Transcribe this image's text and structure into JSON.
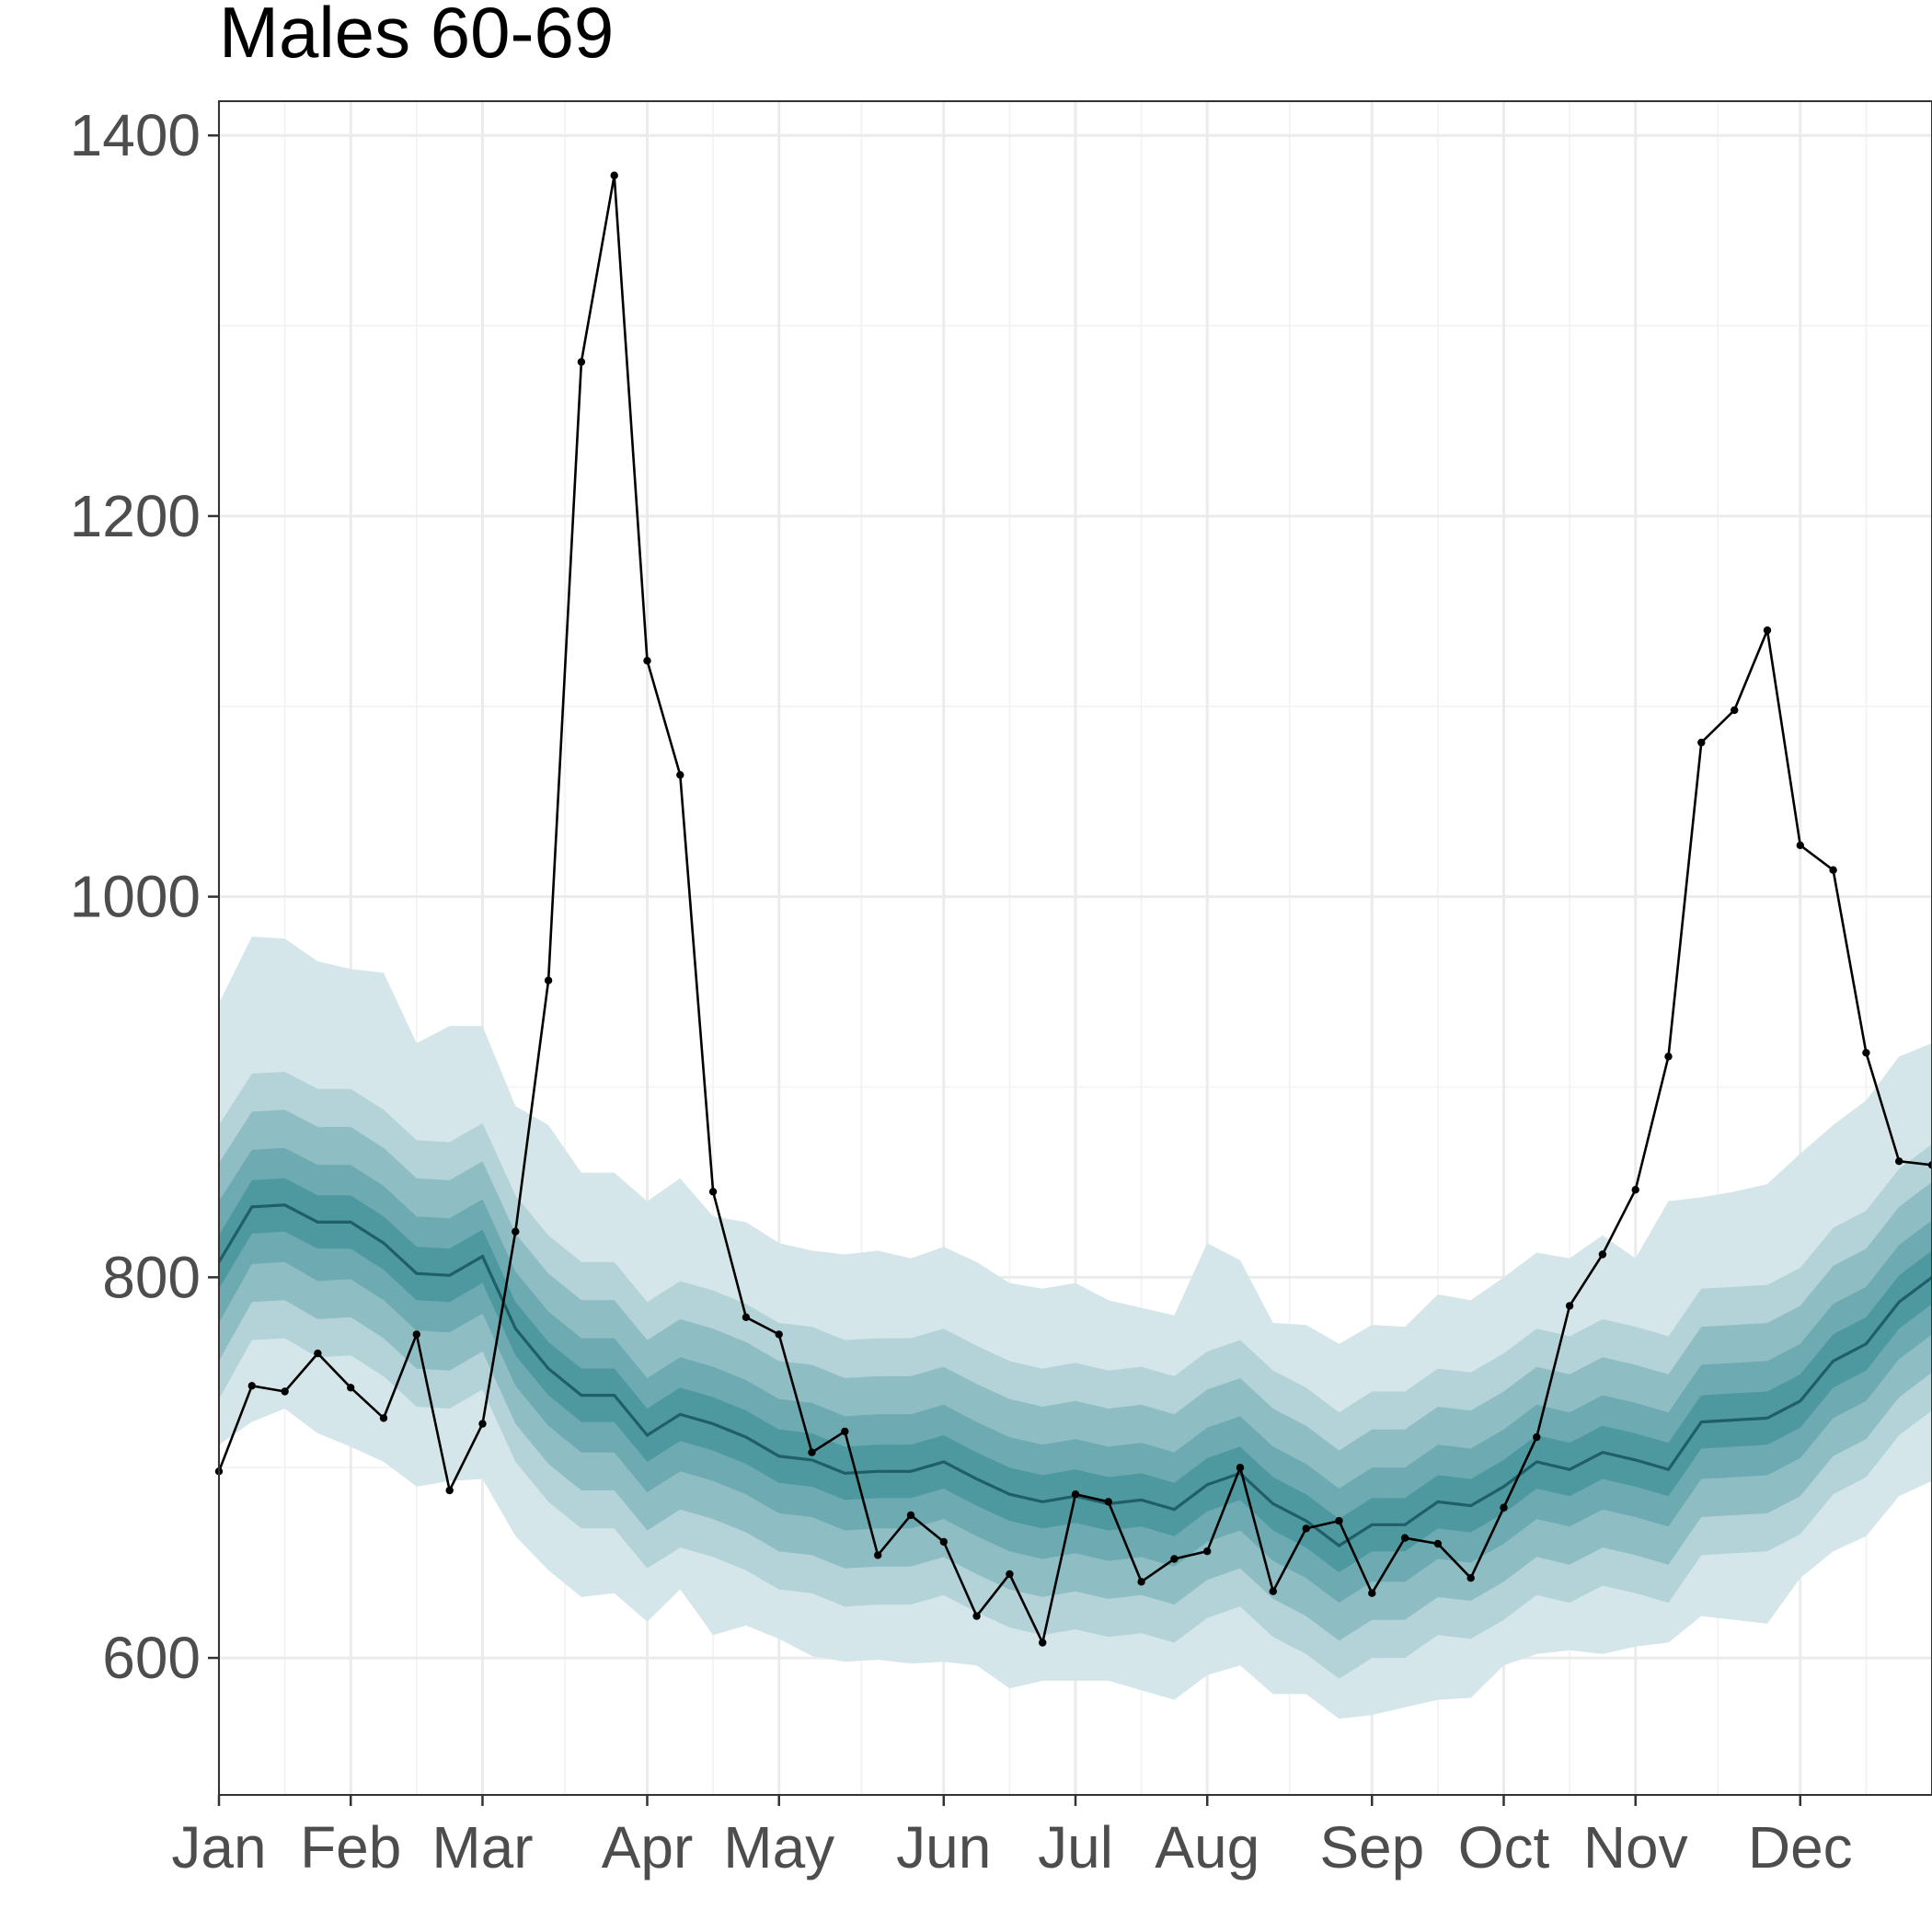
{
  "chart_data": {
    "type": "line",
    "title": "Males 60-69",
    "xlabel": "",
    "ylabel": "",
    "x_ticks": [
      "Jan",
      "Feb",
      "Mar",
      "Apr",
      "May",
      "Jun",
      "Jul",
      "Aug",
      "Sep",
      "Oct",
      "Nov",
      "Dec"
    ],
    "x_tick_weeks": [
      0,
      4,
      8,
      13,
      17,
      22,
      26,
      30,
      35,
      39,
      43,
      48
    ],
    "y_ticks": [
      600,
      800,
      1000,
      1200,
      1400
    ],
    "ylim": [
      528,
      1418
    ],
    "xlim_weeks": [
      0,
      52
    ],
    "grid": true,
    "band_colors": [
      "#d4e6e9",
      "#b3d3d8",
      "#8fbdc4",
      "#6daab2",
      "#4e989f"
    ],
    "median_color": "#1f5f68",
    "observed_color": "#000000",
    "series": [
      {
        "kind": "observed",
        "x": [
          0,
          1,
          2,
          3,
          4,
          5,
          6,
          7,
          8,
          9,
          10,
          11,
          12,
          13,
          14,
          15,
          16,
          17,
          18,
          19,
          20,
          21,
          22,
          23,
          24,
          25,
          26,
          27,
          28,
          29,
          30,
          31,
          32,
          33,
          34,
          35,
          36,
          37,
          38,
          39,
          40,
          41,
          42,
          43,
          44,
          45,
          46,
          47,
          48,
          49,
          50,
          51,
          52
        ],
        "values": [
          698,
          743,
          740,
          760,
          742,
          726,
          770,
          688,
          723,
          824,
          956,
          1281,
          1379,
          1124,
          1064,
          845,
          779,
          770,
          708,
          719,
          654,
          675,
          661,
          622,
          644,
          608,
          686,
          682,
          640,
          652,
          656,
          700,
          635,
          668,
          672,
          634,
          663,
          660,
          642,
          679,
          716,
          785,
          812,
          846,
          916,
          1081,
          1098,
          1140,
          1027,
          1014,
          918,
          861,
          859
        ]
      },
      {
        "kind": "median",
        "x": [
          0,
          1,
          2,
          3,
          4,
          5,
          6,
          7,
          8,
          9,
          10,
          11,
          12,
          13,
          14,
          15,
          16,
          17,
          18,
          19,
          20,
          21,
          22,
          23,
          24,
          25,
          26,
          27,
          28,
          29,
          30,
          31,
          32,
          33,
          34,
          35,
          36,
          37,
          38,
          39,
          40,
          41,
          42,
          43,
          44,
          45,
          46,
          47,
          48,
          49,
          50,
          51,
          52
        ],
        "values": [
          808,
          837,
          838,
          829,
          829,
          818,
          802,
          801,
          811,
          773,
          752,
          738,
          738,
          717,
          728,
          723,
          716,
          706,
          704,
          697,
          698,
          698,
          703,
          694,
          686,
          682,
          685,
          681,
          683,
          678,
          691,
          697,
          681,
          672,
          659,
          670,
          670,
          682,
          680,
          690,
          703,
          699,
          708,
          704,
          699,
          724,
          725,
          726,
          735,
          756,
          765,
          787,
          800
        ]
      }
    ],
    "bands": [
      {
        "level": 1,
        "lower": [
          736,
          767,
          768,
          758,
          759,
          748,
          732,
          731,
          741,
          703,
          682,
          668,
          668,
          647,
          658,
          653,
          646,
          636,
          634,
          627,
          628,
          628,
          633,
          624,
          616,
          612,
          615,
          611,
          613,
          608,
          621,
          627,
          611,
          602,
          589,
          600,
          600,
          612,
          610,
          620,
          633,
          629,
          638,
          634,
          629,
          654,
          655,
          656,
          665,
          686,
          695,
          717,
          730
        ],
        "upper": [
          880,
          907,
          908,
          899,
          899,
          888,
          872,
          871,
          881,
          843,
          822,
          808,
          808,
          787,
          798,
          793,
          786,
          776,
          774,
          767,
          768,
          768,
          773,
          764,
          756,
          752,
          755,
          751,
          753,
          748,
          761,
          767,
          751,
          742,
          729,
          740,
          740,
          752,
          750,
          760,
          773,
          769,
          778,
          774,
          769,
          794,
          795,
          796,
          805,
          826,
          835,
          857,
          870
        ]
      },
      {
        "level": 2,
        "lower": [
          756,
          787,
          788,
          778,
          779,
          768,
          752,
          751,
          761,
          723,
          702,
          688,
          688,
          667,
          678,
          673,
          666,
          656,
          654,
          647,
          648,
          648,
          653,
          644,
          636,
          632,
          635,
          631,
          633,
          628,
          641,
          647,
          631,
          622,
          609,
          620,
          620,
          632,
          630,
          640,
          653,
          649,
          658,
          654,
          649,
          674,
          675,
          676,
          685,
          706,
          715,
          737,
          750
        ],
        "upper": [
          860,
          887,
          888,
          879,
          879,
          868,
          852,
          851,
          861,
          823,
          802,
          788,
          788,
          767,
          778,
          773,
          766,
          756,
          754,
          747,
          748,
          748,
          753,
          744,
          736,
          732,
          735,
          731,
          733,
          728,
          741,
          747,
          731,
          722,
          709,
          720,
          720,
          732,
          730,
          740,
          753,
          749,
          758,
          754,
          749,
          774,
          775,
          776,
          785,
          806,
          815,
          837,
          850
        ]
      },
      {
        "level": 3,
        "lower": [
          776,
          807,
          808,
          798,
          799,
          788,
          772,
          771,
          781,
          743,
          722,
          708,
          708,
          687,
          698,
          693,
          686,
          676,
          674,
          667,
          668,
          668,
          673,
          664,
          656,
          652,
          655,
          651,
          653,
          648,
          661,
          667,
          651,
          642,
          629,
          640,
          640,
          652,
          650,
          660,
          673,
          669,
          678,
          674,
          669,
          694,
          695,
          696,
          705,
          726,
          735,
          757,
          770
        ],
        "upper": [
          840,
          867,
          868,
          859,
          859,
          848,
          832,
          831,
          841,
          803,
          782,
          768,
          768,
          747,
          758,
          753,
          746,
          736,
          734,
          727,
          728,
          728,
          733,
          724,
          716,
          712,
          715,
          711,
          713,
          708,
          721,
          727,
          711,
          702,
          689,
          700,
          700,
          712,
          710,
          720,
          733,
          729,
          738,
          734,
          729,
          754,
          755,
          756,
          765,
          786,
          795,
          817,
          830
        ]
      },
      {
        "level": 4,
        "lower": [
          794,
          823,
          824,
          815,
          815,
          804,
          788,
          787,
          797,
          759,
          738,
          724,
          724,
          703,
          714,
          709,
          702,
          692,
          690,
          683,
          684,
          684,
          689,
          680,
          672,
          668,
          671,
          667,
          669,
          664,
          677,
          683,
          667,
          658,
          645,
          656,
          656,
          668,
          666,
          676,
          689,
          685,
          694,
          690,
          685,
          710,
          711,
          712,
          721,
          742,
          751,
          773,
          786
        ],
        "upper": [
          822,
          851,
          852,
          843,
          843,
          832,
          816,
          815,
          825,
          787,
          766,
          752,
          752,
          731,
          742,
          737,
          730,
          720,
          718,
          711,
          712,
          712,
          717,
          708,
          700,
          696,
          699,
          695,
          697,
          692,
          705,
          711,
          695,
          686,
          673,
          684,
          684,
          696,
          694,
          704,
          717,
          713,
          722,
          718,
          713,
          738,
          739,
          740,
          749,
          770,
          779,
          801,
          814
        ]
      }
    ],
    "outer_band": {
      "lower": [
        712,
        724,
        731,
        718,
        711,
        703,
        690,
        693,
        694,
        664,
        646,
        632,
        634,
        619,
        636,
        612,
        617,
        610,
        601,
        598,
        599,
        597,
        598,
        596,
        584,
        588,
        588,
        588,
        583,
        578,
        591,
        596,
        581,
        581,
        568,
        570,
        574,
        578,
        579,
        596,
        602,
        604,
        602,
        606,
        608,
        622,
        620,
        618,
        642,
        656,
        664,
        685,
        693
      ],
      "upper": [
        944,
        979,
        978,
        966,
        962,
        960,
        923,
        932,
        932,
        890,
        880,
        855,
        855,
        840,
        852,
        832,
        829,
        818,
        814,
        812,
        814,
        810,
        816,
        808,
        797,
        794,
        797,
        788,
        784,
        780,
        818,
        809,
        776,
        775,
        765,
        775,
        774,
        791,
        788,
        800,
        813,
        810,
        822,
        810,
        840,
        842,
        845,
        849,
        865,
        880,
        893,
        916,
        923
      ]
    }
  }
}
